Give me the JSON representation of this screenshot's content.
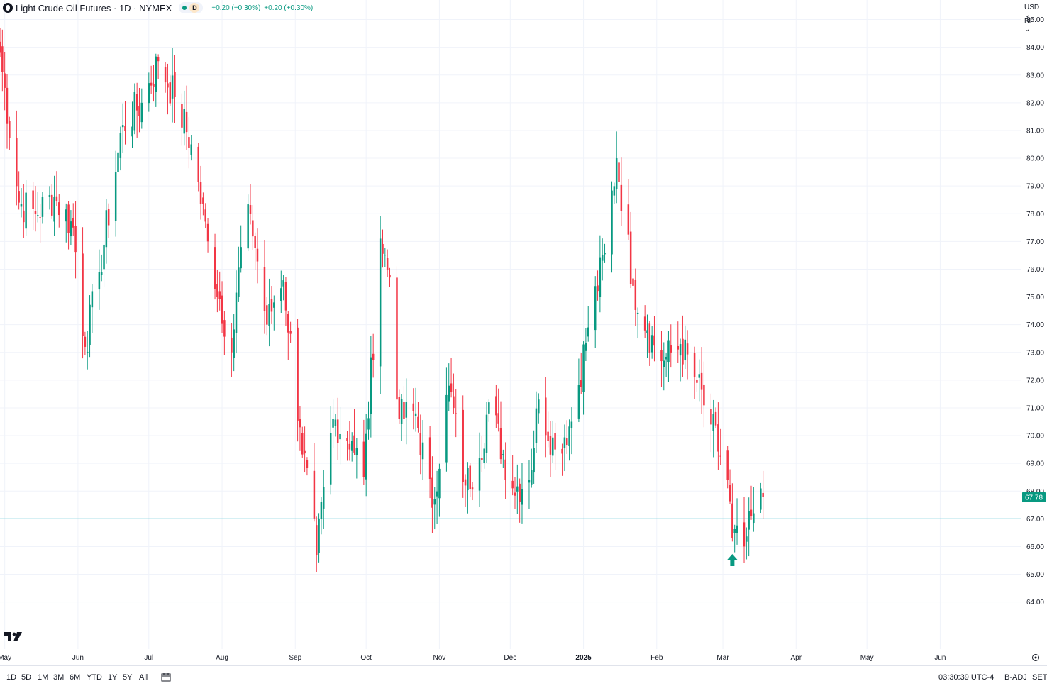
{
  "header": {
    "title": "Light Crude Oil Futures · 1D · NYMEX",
    "delay_badge": "D",
    "change_1": "+0.20 (+0.30%)",
    "change_2": "+0.20 (+0.30%)",
    "change_color": "#089981",
    "currency": "USD ⌄",
    "unit": "BLL ⌄"
  },
  "toolbar": {
    "timeframes": [
      "1D",
      "5D",
      "1M",
      "3M",
      "6M",
      "YTD",
      "1Y",
      "5Y",
      "All"
    ],
    "clock": "03:30:39 UTC-4",
    "badj": "B-ADJ",
    "set": "SET"
  },
  "colors": {
    "up": "#089981",
    "down": "#f23645",
    "grid": "#f0f3fa",
    "hline": "#5fc8d1",
    "last_price_bg": "#089981",
    "axis_text": "#131722"
  },
  "icons": [
    "symbol-icon",
    "compare-icon",
    "settings-icon",
    "tv-logo",
    "buy-signal-arrow"
  ],
  "chart_data": {
    "type": "candlestick",
    "title": "Light Crude Oil Futures · 1D · NYMEX",
    "ylim": [
      63.4,
      86.2
    ],
    "y_ticks": [
      "64.00",
      "65.00",
      "66.00",
      "67.00",
      "68.00",
      "69.00",
      "70.00",
      "71.00",
      "72.00",
      "73.00",
      "74.00",
      "75.00",
      "76.00",
      "77.00",
      "78.00",
      "79.00",
      "80.00",
      "81.00",
      "82.00",
      "83.00",
      "84.00",
      "85.00"
    ],
    "x_ticks": [
      {
        "label": "May",
        "date": "2024-05-01"
      },
      {
        "label": "Jun",
        "date": "2024-06-01"
      },
      {
        "label": "Jul",
        "date": "2024-07-01"
      },
      {
        "label": "Aug",
        "date": "2024-08-01"
      },
      {
        "label": "Sep",
        "date": "2024-09-01"
      },
      {
        "label": "Oct",
        "date": "2024-10-01"
      },
      {
        "label": "Nov",
        "date": "2024-11-01"
      },
      {
        "label": "Dec",
        "date": "2024-12-01"
      },
      {
        "label": "2025",
        "date": "2025-01-01"
      },
      {
        "label": "Feb",
        "date": "2025-02-01"
      },
      {
        "label": "Mar",
        "date": "2025-03-01"
      },
      {
        "label": "Apr",
        "date": "2025-04-01"
      },
      {
        "label": "May",
        "date": "2025-05-01"
      },
      {
        "label": "Jun",
        "date": "2025-06-01"
      }
    ],
    "date_range": [
      "2024-04-29",
      "2025-06-30"
    ],
    "last_price": 67.78,
    "last_price_label": "67.78",
    "horizontal_line": 67.0,
    "signal": {
      "type": "buy-arrow",
      "date": "2025-03-05",
      "price": 65.5
    },
    "anchors": [
      {
        "date": "2024-04-29",
        "close": 83.8
      },
      {
        "date": "2024-05-07",
        "close": 78.4
      },
      {
        "date": "2024-05-14",
        "close": 78.0
      },
      {
        "date": "2024-05-22",
        "close": 78.6
      },
      {
        "date": "2024-05-30",
        "close": 77.5
      },
      {
        "date": "2024-06-04",
        "close": 73.2
      },
      {
        "date": "2024-06-10",
        "close": 75.9
      },
      {
        "date": "2024-06-20",
        "close": 81.2
      },
      {
        "date": "2024-06-28",
        "close": 82.0
      },
      {
        "date": "2024-07-05",
        "close": 83.5
      },
      {
        "date": "2024-07-12",
        "close": 82.2
      },
      {
        "date": "2024-07-19",
        "close": 80.5
      },
      {
        "date": "2024-07-26",
        "close": 77.0
      },
      {
        "date": "2024-08-05",
        "close": 73.0
      },
      {
        "date": "2024-08-09",
        "close": 76.8
      },
      {
        "date": "2024-08-13",
        "close": 78.0
      },
      {
        "date": "2024-08-20",
        "close": 74.0
      },
      {
        "date": "2024-08-23",
        "close": 74.8
      },
      {
        "date": "2024-08-27",
        "close": 75.6
      },
      {
        "date": "2024-09-03",
        "close": 70.3
      },
      {
        "date": "2024-09-10",
        "close": 65.7
      },
      {
        "date": "2024-09-17",
        "close": 70.6
      },
      {
        "date": "2024-09-25",
        "close": 69.8
      },
      {
        "date": "2024-09-30",
        "close": 68.5
      },
      {
        "date": "2024-10-07",
        "close": 77.1
      },
      {
        "date": "2024-10-11",
        "close": 75.7
      },
      {
        "date": "2024-10-15",
        "close": 70.6
      },
      {
        "date": "2024-10-22",
        "close": 70.8
      },
      {
        "date": "2024-10-29",
        "close": 67.4
      },
      {
        "date": "2024-11-05",
        "close": 71.8
      },
      {
        "date": "2024-11-12",
        "close": 68.2
      },
      {
        "date": "2024-11-18",
        "close": 69.2
      },
      {
        "date": "2024-11-22",
        "close": 71.2
      },
      {
        "date": "2024-12-02",
        "close": 68.1
      },
      {
        "date": "2024-12-09",
        "close": 68.4
      },
      {
        "date": "2024-12-13",
        "close": 71.3
      },
      {
        "date": "2024-12-20",
        "close": 69.5
      },
      {
        "date": "2024-12-27",
        "close": 70.5
      },
      {
        "date": "2025-01-03",
        "close": 73.9
      },
      {
        "date": "2025-01-10",
        "close": 76.6
      },
      {
        "date": "2025-01-15",
        "close": 80.0
      },
      {
        "date": "2025-01-22",
        "close": 75.4
      },
      {
        "date": "2025-01-28",
        "close": 73.8
      },
      {
        "date": "2025-02-04",
        "close": 72.7
      },
      {
        "date": "2025-02-11",
        "close": 73.3
      },
      {
        "date": "2025-02-18",
        "close": 71.9
      },
      {
        "date": "2025-02-24",
        "close": 70.4
      },
      {
        "date": "2025-03-03",
        "close": 68.4
      },
      {
        "date": "2025-03-05",
        "close": 66.3
      },
      {
        "date": "2025-03-10",
        "close": 66.0
      },
      {
        "date": "2025-03-14",
        "close": 67.2
      },
      {
        "date": "2025-03-18",
        "close": 67.78
      }
    ]
  }
}
